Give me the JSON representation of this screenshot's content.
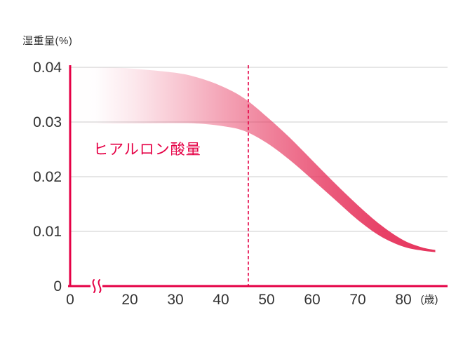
{
  "chart_data": {
    "type": "area",
    "title": "ヒアルロン酸量",
    "ylabel": "湿重量(%)",
    "x_unit_label": "(歳)",
    "x_ticks": [
      0,
      20,
      30,
      40,
      50,
      60,
      70,
      80
    ],
    "x_tick_labels": [
      "0",
      "20",
      "30",
      "40",
      "50",
      "60",
      "70",
      "80"
    ],
    "y_ticks": [
      0,
      0.01,
      0.02,
      0.03,
      0.04
    ],
    "y_tick_labels": [
      "0",
      "0.01",
      "0.02",
      "0.03",
      "0.04"
    ],
    "ylim": [
      0,
      0.04
    ],
    "xlim": [
      0,
      87
    ],
    "grid": "horizontal",
    "legend": "none",
    "axis_break": {
      "present": true,
      "between": [
        0,
        20
      ]
    },
    "dashed_line_x": 46,
    "series": [
      {
        "name": "band-upper",
        "x": [
          1,
          10,
          20,
          30,
          35,
          40,
          45,
          50,
          55,
          60,
          65,
          70,
          75,
          80,
          84,
          87
        ],
        "values": [
          0.04,
          0.04,
          0.0398,
          0.039,
          0.0381,
          0.0366,
          0.0344,
          0.031,
          0.0272,
          0.023,
          0.0188,
          0.0148,
          0.0112,
          0.0084,
          0.0071,
          0.0066
        ]
      },
      {
        "name": "band-lower",
        "x": [
          1,
          10,
          20,
          30,
          35,
          40,
          45,
          50,
          55,
          60,
          65,
          70,
          75,
          80,
          84,
          87
        ],
        "values": [
          0.0295,
          0.0296,
          0.0297,
          0.0298,
          0.0297,
          0.0293,
          0.0284,
          0.0262,
          0.0231,
          0.0195,
          0.0158,
          0.0121,
          0.0091,
          0.0072,
          0.0065,
          0.0062
        ]
      }
    ],
    "colors": {
      "axis": "#e50045",
      "grid": "#cccccc",
      "band": "#e6335c",
      "label": "#e50045",
      "text": "#333333",
      "background": "#ffffff"
    }
  }
}
